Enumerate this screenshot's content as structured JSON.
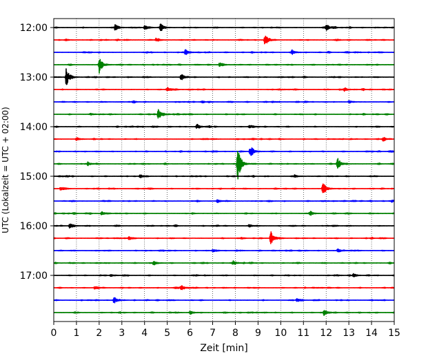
{
  "chart_data": {
    "type": "line",
    "title": "",
    "xlabel": "Zeit  [min]",
    "ylabel": "UTC (Lokalzeit = UTC + 02:00)",
    "xlim": [
      0,
      15
    ],
    "x_ticks": [
      "0",
      "1",
      "2",
      "3",
      "4",
      "5",
      "6",
      "7",
      "8",
      "9",
      "10",
      "11",
      "12",
      "13",
      "14",
      "15"
    ],
    "y_ticks": [
      "12:00",
      "13:00",
      "14:00",
      "15:00",
      "16:00",
      "17:00"
    ],
    "grid": "vertical dotted",
    "trace_minutes": 15,
    "colors": [
      "#000000",
      "#ff0000",
      "#0000ff",
      "#008000"
    ],
    "traces": [
      {
        "start": "12:00",
        "color": "#000000",
        "events": [
          {
            "t": 2.7,
            "amp": 0.25
          },
          {
            "t": 4.7,
            "amp": 0.35
          },
          {
            "t": 4.0,
            "amp": 0.2
          },
          {
            "t": 12.0,
            "amp": 0.25
          }
        ]
      },
      {
        "start": "12:15",
        "color": "#ff0000",
        "events": [
          {
            "t": 9.3,
            "amp": 0.5
          },
          {
            "t": 4.5,
            "amp": 0.15
          }
        ]
      },
      {
        "start": "12:30",
        "color": "#0000ff",
        "events": [
          {
            "t": 5.8,
            "amp": 0.22
          },
          {
            "t": 10.5,
            "amp": 0.18
          }
        ]
      },
      {
        "start": "12:45",
        "color": "#008000",
        "events": [
          {
            "t": 2.0,
            "amp": 0.7
          },
          {
            "t": 7.3,
            "amp": 0.2
          }
        ]
      },
      {
        "start": "13:00",
        "color": "#000000",
        "events": [
          {
            "t": 0.55,
            "amp": 0.75
          },
          {
            "t": 5.6,
            "amp": 0.3
          }
        ]
      },
      {
        "start": "13:15",
        "color": "#ff0000",
        "events": [
          {
            "t": 5.0,
            "amp": 0.18
          },
          {
            "t": 12.8,
            "amp": 0.15
          }
        ]
      },
      {
        "start": "13:30",
        "color": "#0000ff",
        "events": [
          {
            "t": 13.0,
            "amp": 0.12
          }
        ]
      },
      {
        "start": "13:45",
        "color": "#008000",
        "events": [
          {
            "t": 4.6,
            "amp": 0.45
          }
        ]
      },
      {
        "start": "14:00",
        "color": "#000000",
        "events": [
          {
            "t": 6.3,
            "amp": 0.15
          },
          {
            "t": 8.6,
            "amp": 0.12
          }
        ]
      },
      {
        "start": "14:15",
        "color": "#ff0000",
        "events": [
          {
            "t": 1.0,
            "amp": 0.15
          },
          {
            "t": 14.5,
            "amp": 0.15
          }
        ]
      },
      {
        "start": "14:30",
        "color": "#0000ff",
        "events": [
          {
            "t": 8.65,
            "amp": 0.5
          }
        ]
      },
      {
        "start": "14:45",
        "color": "#008000",
        "events": [
          {
            "t": 8.1,
            "amp": 1.5
          },
          {
            "t": 12.5,
            "amp": 0.45
          },
          {
            "t": 1.5,
            "amp": 0.15
          }
        ]
      },
      {
        "start": "15:00",
        "color": "#000000",
        "events": [
          {
            "t": 3.8,
            "amp": 0.15
          },
          {
            "t": 10.6,
            "amp": 0.12
          }
        ]
      },
      {
        "start": "15:15",
        "color": "#ff0000",
        "events": [
          {
            "t": 11.85,
            "amp": 0.6
          },
          {
            "t": 0.3,
            "amp": 0.15
          }
        ]
      },
      {
        "start": "15:30",
        "color": "#0000ff",
        "events": [
          {
            "t": 7.2,
            "amp": 0.12
          },
          {
            "t": 14.9,
            "amp": 0.12
          }
        ]
      },
      {
        "start": "15:45",
        "color": "#008000",
        "events": [
          {
            "t": 2.1,
            "amp": 0.15
          },
          {
            "t": 11.3,
            "amp": 0.15
          }
        ]
      },
      {
        "start": "16:00",
        "color": "#000000",
        "events": [
          {
            "t": 0.7,
            "amp": 0.18
          },
          {
            "t": 8.6,
            "amp": 0.12
          }
        ]
      },
      {
        "start": "16:15",
        "color": "#ff0000",
        "events": [
          {
            "t": 9.55,
            "amp": 0.7
          },
          {
            "t": 3.3,
            "amp": 0.15
          }
        ]
      },
      {
        "start": "16:30",
        "color": "#0000ff",
        "events": [
          {
            "t": 7.0,
            "amp": 0.12
          },
          {
            "t": 12.5,
            "amp": 0.12
          }
        ]
      },
      {
        "start": "16:45",
        "color": "#008000",
        "events": [
          {
            "t": 4.4,
            "amp": 0.18
          },
          {
            "t": 7.9,
            "amp": 0.2
          }
        ]
      },
      {
        "start": "17:00",
        "color": "#000000",
        "events": [
          {
            "t": 2.5,
            "amp": 0.12
          },
          {
            "t": 13.2,
            "amp": 0.12
          }
        ]
      },
      {
        "start": "17:15",
        "color": "#ff0000",
        "events": [
          {
            "t": 5.6,
            "amp": 0.2
          },
          {
            "t": 1.8,
            "amp": 0.12
          }
        ]
      },
      {
        "start": "17:30",
        "color": "#0000ff",
        "events": [
          {
            "t": 2.65,
            "amp": 0.25
          },
          {
            "t": 10.7,
            "amp": 0.15
          }
        ]
      },
      {
        "start": "17:45",
        "color": "#008000",
        "events": [
          {
            "t": 11.9,
            "amp": 0.25
          },
          {
            "t": 6.0,
            "amp": 0.12
          }
        ]
      }
    ]
  }
}
